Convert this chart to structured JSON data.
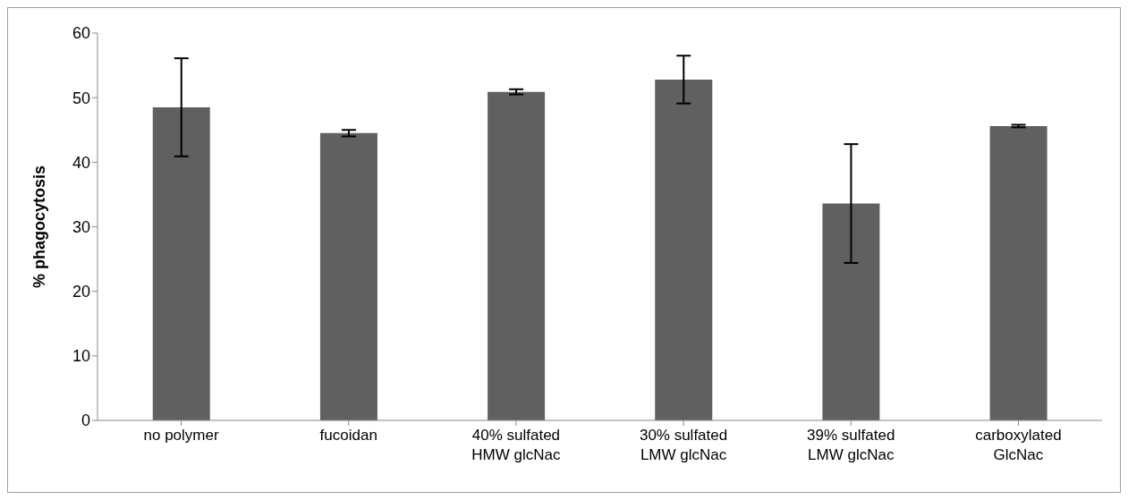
{
  "chart_data": {
    "type": "bar",
    "ylabel": "% phagocytosis",
    "categories": [
      "no polymer",
      "fucoidan",
      "40% sulfated\nHMW glcNac",
      "30% sulfated\nLMW glcNac",
      "39% sulfated\nLMW glcNac",
      "carboxylated\nGlcNac"
    ],
    "values": [
      48.5,
      44.5,
      50.9,
      52.8,
      33.6,
      45.6
    ],
    "errors": [
      7.6,
      0.5,
      0.4,
      3.7,
      9.2,
      0.2
    ],
    "color": "#606060",
    "ylim": [
      0,
      60
    ],
    "yticks": [
      0,
      10,
      20,
      30,
      40,
      50,
      60
    ],
    "grid": false,
    "legend": false
  }
}
